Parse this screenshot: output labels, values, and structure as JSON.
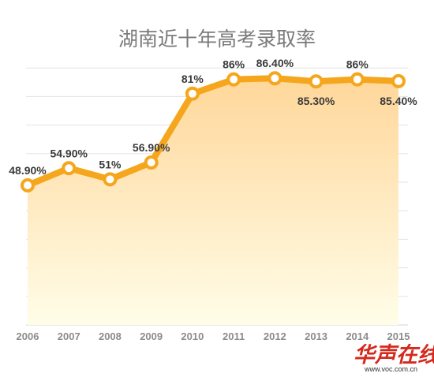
{
  "chart_data": {
    "type": "area",
    "title": "湖南近十年高考录取率",
    "xlabel": "",
    "ylabel": "",
    "categories": [
      "2006",
      "2007",
      "2008",
      "2009",
      "2010",
      "2011",
      "2012",
      "2013",
      "2014",
      "2015"
    ],
    "series": [
      {
        "values": [
          48.9,
          54.9,
          51,
          56.9,
          81,
          86,
          86.4,
          85.3,
          86,
          85.4
        ],
        "labels": [
          "48.90%",
          "54.90%",
          "51%",
          "56.90%",
          "81%",
          "86%",
          "86.40%",
          "85.30%",
          "86%",
          "85.40%"
        ]
      }
    ],
    "ylim": [
      0,
      100
    ],
    "grid": true,
    "legend": "none",
    "colors": {
      "line": "#f5a61c",
      "marker_fill": "#ffffff",
      "area_top": "#ffd79a",
      "area_bottom": "#fffde8",
      "grid": "#e3e3e3"
    }
  },
  "watermark": {
    "text": "华声在线",
    "url": "www.voc.com.cn",
    "color": "#d42a1e"
  }
}
